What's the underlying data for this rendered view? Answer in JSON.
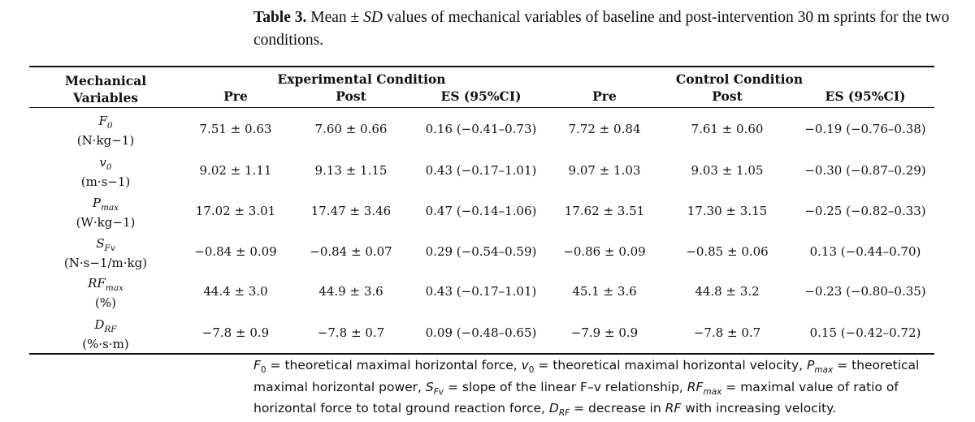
{
  "table": {
    "label": "Table 3.",
    "caption_pre": "Mean ± ",
    "caption_sd": "SD",
    "caption_post": " values of mechanical variables of baseline and post-intervention 30 m sprints for the two conditions.",
    "header": {
      "col0_line1": "Mechanical",
      "col0_line2": "Variables",
      "group1": "Experimental Condition",
      "group2": "Control Condition",
      "pre": "Pre",
      "post": "Post",
      "es": "ES (95%CI)"
    },
    "rows": [
      {
        "sym_main": "F",
        "sym_sub": "0",
        "unit": "(N·kg−1)",
        "cells": [
          "7.51 ± 0.63",
          "7.60 ± 0.66",
          "0.16 (−0.41–0.73)",
          "7.72 ± 0.84",
          "7.61 ± 0.60",
          "−0.19 (−0.76–0.38)"
        ]
      },
      {
        "sym_main": "v",
        "sym_sub": "0",
        "unit": "(m·s−1)",
        "cells": [
          "9.02 ± 1.11",
          "9.13 ± 1.15",
          "0.43 (−0.17–1.01)",
          "9.07 ± 1.03",
          "9.03 ± 1.05",
          "−0.30 (−0.87–0.29)"
        ]
      },
      {
        "sym_main": "P",
        "sym_sub": "max",
        "unit": "(W·kg−1)",
        "cells": [
          "17.02 ± 3.01",
          "17.47 ± 3.46",
          "0.47 (−0.14–1.06)",
          "17.62 ± 3.51",
          "17.30 ± 3.15",
          "−0.25 (−0.82–0.33)"
        ]
      },
      {
        "sym_main": "S",
        "sym_sub": "Fv",
        "unit": "(N·s−1/m·kg)",
        "cells": [
          "−0.84 ± 0.09",
          "−0.84 ± 0.07",
          "0.29 (−0.54–0.59)",
          "−0.86 ± 0.09",
          "−0.85 ± 0.06",
          "0.13 (−0.44–0.70)"
        ]
      },
      {
        "sym_main": "RF",
        "sym_sub": "max",
        "unit": "(%)",
        "cells": [
          "44.4 ± 3.0",
          "44.9 ± 3.6",
          "0.43 (−0.17–1.01)",
          "45.1 ± 3.6",
          "44.8 ± 3.2",
          "−0.23 (−0.80–0.35)"
        ]
      },
      {
        "sym_main": "D",
        "sym_sub": "RF",
        "unit": "(%·s·m)",
        "cells": [
          "−7.8 ± 0.9",
          "−7.8 ± 0.7",
          "0.09 (−0.48–0.65)",
          "−7.9 ± 0.9",
          "−7.8 ± 0.7",
          "0.15 (−0.42–0.72)"
        ]
      }
    ],
    "footnote": {
      "f0_def": " = theoretical maximal horizontal force, ",
      "v0_def": " = theoretical maximal horizontal velocity, ",
      "pmax_def": " = theoretical maximal horizontal power, ",
      "sfv_def": " = slope of the linear F–v relationship, ",
      "rfmax_def": " = maximal value of ratio of horizontal force to total ground reaction force, ",
      "drf_def_a": " = decrease in ",
      "drf_def_rf": "RF",
      "drf_def_b": " with increasing velocity."
    }
  }
}
